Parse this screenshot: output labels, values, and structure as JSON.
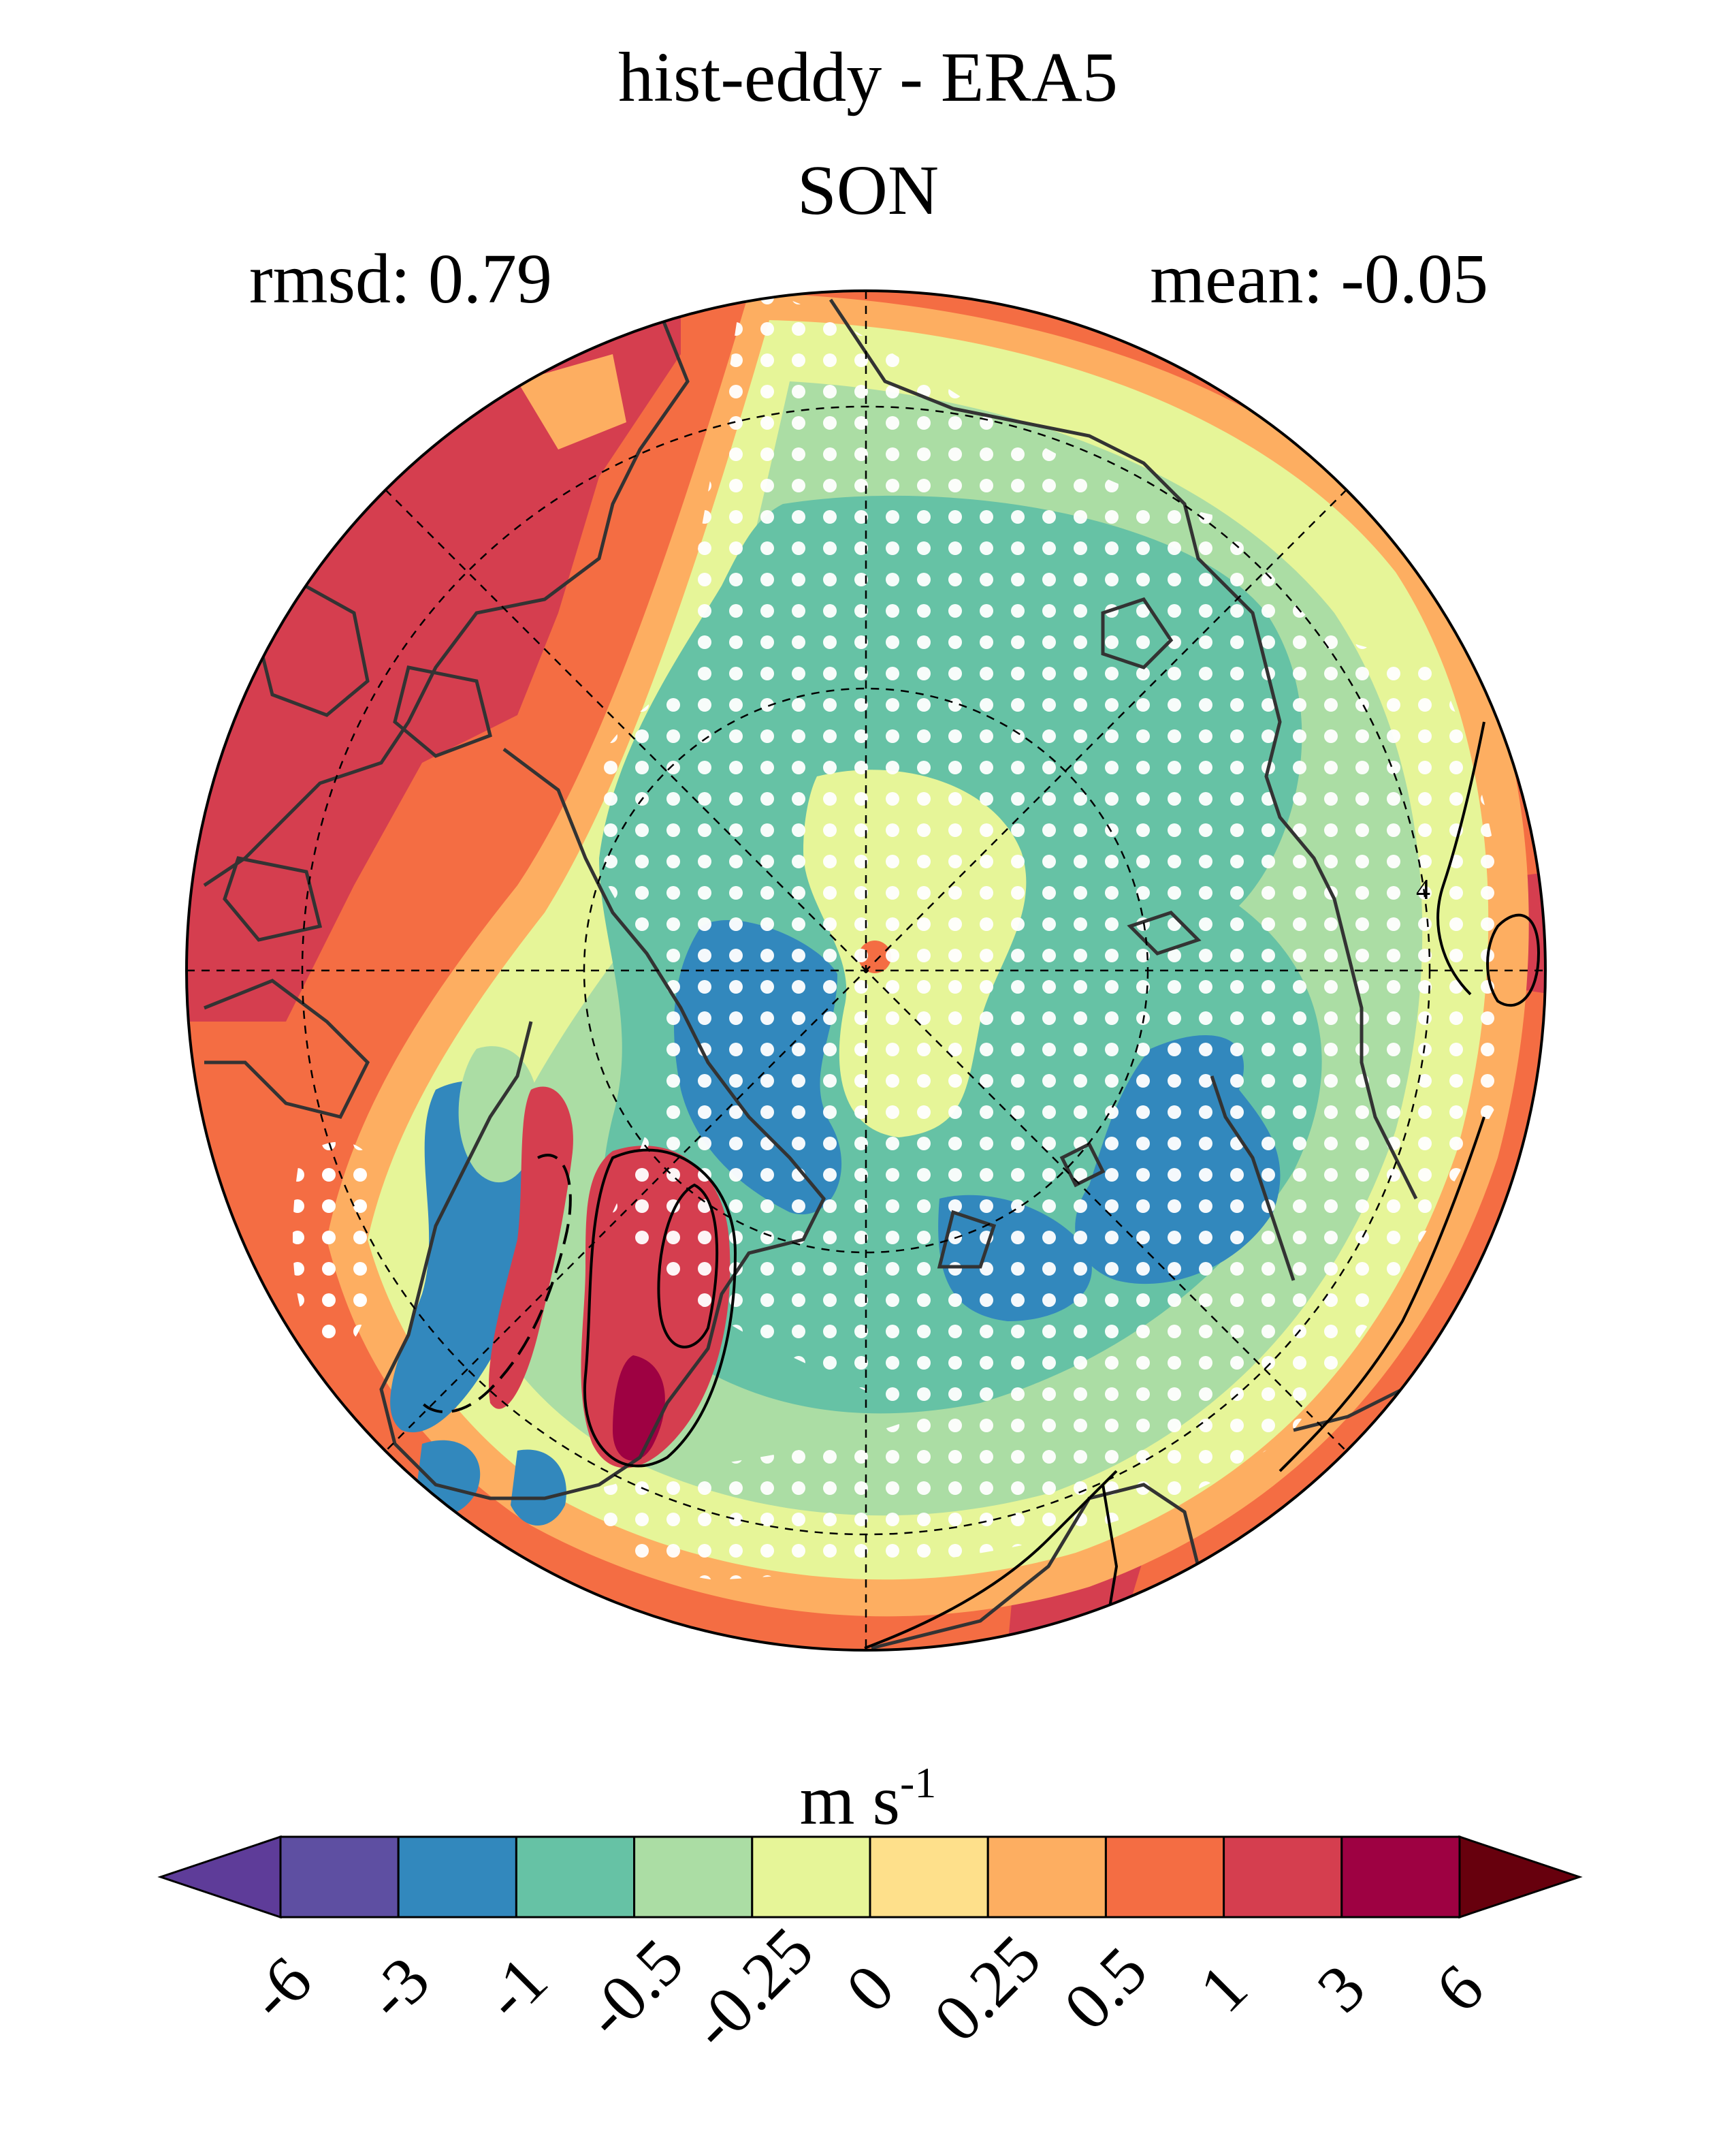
{
  "title": "hist-eddy - ERA5",
  "season": "SON",
  "rmsd_text": "rmsd: 0.79",
  "mean_text": "mean: -0.05",
  "colorbar": {
    "unit_base": "m s",
    "unit_exp": "-1",
    "ticks": [
      "-6",
      "-3",
      "-1",
      "-0.5",
      "-0.25",
      "0",
      "0.25",
      "0.5",
      "1",
      "3",
      "6"
    ],
    "colors": [
      "#5e3c99",
      "#5e4fa2",
      "#3288bd",
      "#66c2a5",
      "#abdda4",
      "#e6f598",
      "#fee08b",
      "#fdae61",
      "#f46d43",
      "#d53e4f",
      "#9e0142",
      "#67000d"
    ]
  },
  "map": {
    "projection": "north polar stereographic",
    "contour_label": "4",
    "stipple_color": "#ffffff",
    "coast_color": "#333333"
  }
}
